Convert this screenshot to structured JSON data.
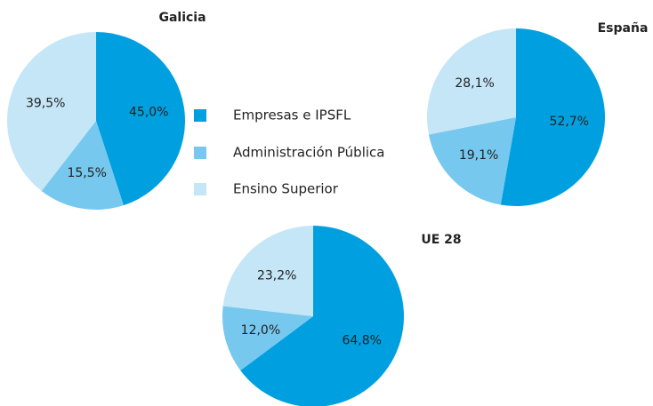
{
  "chart_data": [
    {
      "type": "pie",
      "title": "Galicia",
      "categories": [
        "Empresas e IPSFL",
        "Administración Pública",
        "Ensino Superior"
      ],
      "colors": [
        "#00a0e0",
        "#76c8ee",
        "#c5e6f7"
      ],
      "values": [
        45.0,
        15.5,
        39.5
      ],
      "value_labels": [
        "45,0%",
        "15,5%",
        "39,5%"
      ]
    },
    {
      "type": "pie",
      "title": "España",
      "values": [
        52.7,
        19.1,
        28.1
      ],
      "value_labels": [
        "52,7%",
        "19,1%",
        "28,1%"
      ]
    },
    {
      "type": "pie",
      "title": "UE 28",
      "values": [
        64.8,
        12.0,
        23.2
      ],
      "value_labels": [
        "64,8%",
        "12,0%",
        "23,2%"
      ]
    }
  ]
}
